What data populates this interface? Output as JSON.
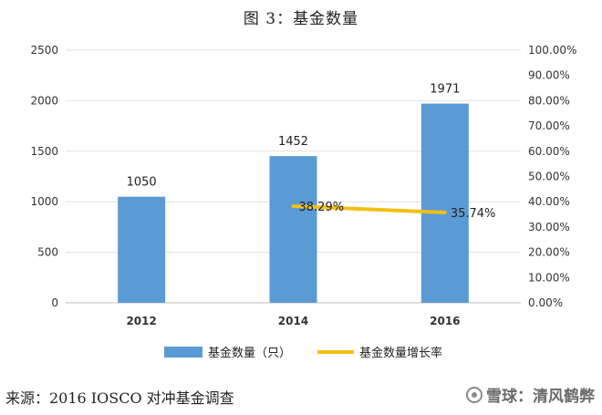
{
  "chart_data": {
    "type": "bar",
    "title": "图 3：基金数量",
    "categories": [
      "2012",
      "2014",
      "2016"
    ],
    "series": [
      {
        "name": "基金数量（只）",
        "type": "bar",
        "axis": "left",
        "values": [
          1050,
          1452,
          1971
        ],
        "color": "#5b9bd5"
      },
      {
        "name": "基金数量增长率",
        "type": "line",
        "axis": "right",
        "values": [
          null,
          38.29,
          35.74
        ],
        "color": "#f2c014"
      }
    ],
    "data_labels": {
      "bar": [
        "1050",
        "1452",
        "1971"
      ],
      "line": [
        "",
        "38.29%",
        "35.74%"
      ]
    },
    "ylim_left": [
      0,
      2500
    ],
    "yticks_left": [
      "0",
      "500",
      "1000",
      "1500",
      "2000",
      "2500"
    ],
    "ylim_right": [
      0,
      100
    ],
    "yticks_right": [
      "0.00%",
      "10.00%",
      "20.00%",
      "30.00%",
      "40.00%",
      "50.00%",
      "60.00%",
      "70.00%",
      "80.00%",
      "90.00%",
      "100.00%"
    ],
    "legend_position": "bottom",
    "grid": "horizontal"
  },
  "footer": {
    "source": "来源：2016 IOSCO 对冲基金调查",
    "watermark": "雪球：清风鹤弊"
  }
}
